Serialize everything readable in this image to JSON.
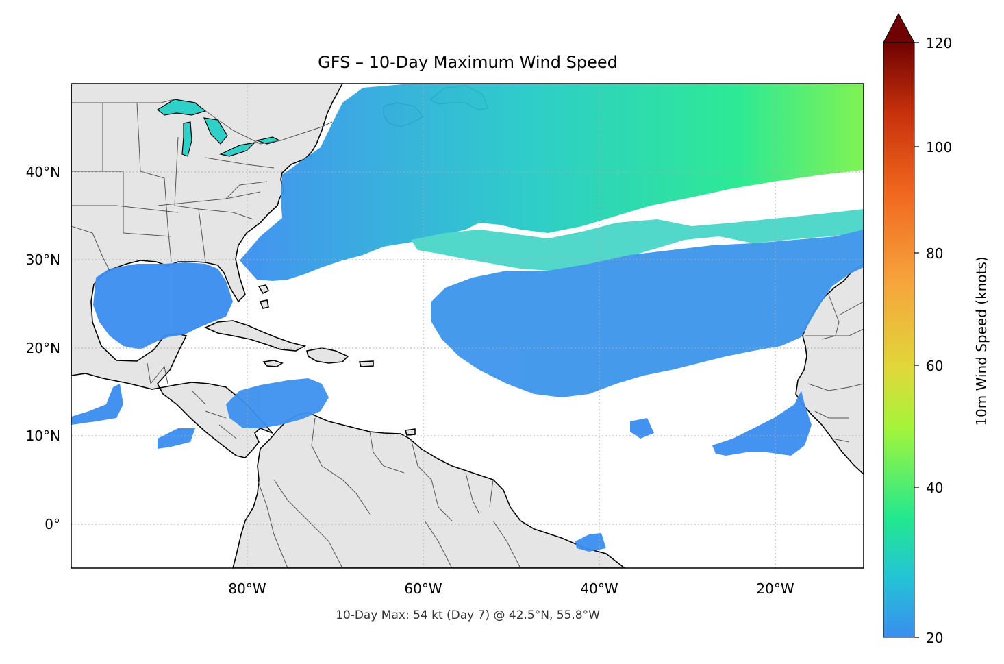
{
  "title": "GFS – 10-Day Maximum Wind Speed",
  "footnote": "10-Day Max: 54 kt (Day 7) @ 42.5°N, 55.8°W",
  "colorbar": {
    "label": "10m Wind Speed (knots)",
    "min": 20,
    "max": 120,
    "extend": "max",
    "ticks": [
      "20",
      "40",
      "60",
      "80",
      "100",
      "120"
    ],
    "tick_values": [
      20,
      40,
      60,
      80,
      100,
      120
    ],
    "colors": [
      "#3a8df0",
      "#24c3d6",
      "#22e88f",
      "#a2f53a",
      "#e0d83a",
      "#f7a33c",
      "#f0661e",
      "#c8320c",
      "#9a1606",
      "#6f0202"
    ]
  },
  "map": {
    "lon_range": [
      -100,
      -10
    ],
    "lat_range": [
      -5,
      50
    ],
    "x_ticks": [
      {
        "value": -80,
        "label": "80°W"
      },
      {
        "value": -60,
        "label": "60°W"
      },
      {
        "value": -40,
        "label": "40°W"
      },
      {
        "value": -20,
        "label": "20°W"
      }
    ],
    "y_ticks": [
      {
        "value": 40,
        "label": "40°N"
      },
      {
        "value": 30,
        "label": "30°N"
      },
      {
        "value": 20,
        "label": "20°N"
      },
      {
        "value": 10,
        "label": "10°N"
      },
      {
        "value": 0,
        "label": "0°"
      }
    ],
    "gridlines": true,
    "land_color": "#e5e5e5",
    "ocean_color": "#ffffff"
  },
  "chart_data": {
    "type": "heatmap",
    "title": "GFS – 10-Day Maximum Wind Speed",
    "xlabel": "",
    "ylabel": "",
    "xlim": [
      -100,
      -10
    ],
    "ylim": [
      -5,
      50
    ],
    "value_label": "10m Wind Speed (knots)",
    "value_range": [
      20,
      120
    ],
    "maximum": {
      "value": 54,
      "units": "kt",
      "day": 7,
      "lat": 42.5,
      "lon": -55.8
    }
  }
}
